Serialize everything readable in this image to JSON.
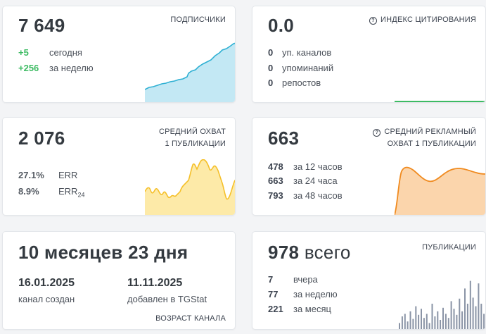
{
  "subscribers": {
    "value": "7 649",
    "caption": "ПОДПИСЧИКИ",
    "stats": [
      {
        "value": "+5",
        "label": "сегодня"
      },
      {
        "value": "+256",
        "label": "за неделю"
      }
    ]
  },
  "citation": {
    "value": "0.0",
    "caption": "ИНДЕКС ЦИТИРОВАНИЯ",
    "stats": [
      {
        "value": "0",
        "label": "уп. каналов"
      },
      {
        "value": "0",
        "label": "упоминаний"
      },
      {
        "value": "0",
        "label": "репостов"
      }
    ]
  },
  "reach": {
    "value": "2 076",
    "caption_lines": [
      "СРЕДНИЙ ОХВАТ",
      "1 ПУБЛИКАЦИИ"
    ],
    "stats": [
      {
        "value": "27.1%",
        "label": "ERR"
      },
      {
        "value": "8.9%",
        "label": "ERR",
        "sub": "24"
      }
    ]
  },
  "ad_reach": {
    "value": "663",
    "caption_lines": [
      "СРЕДНИЙ РЕКЛАМНЫЙ",
      "ОХВАТ 1 ПУБЛИКАЦИИ"
    ],
    "stats": [
      {
        "value": "478",
        "label": "за 12 часов"
      },
      {
        "value": "663",
        "label": "за 24 часа"
      },
      {
        "value": "793",
        "label": "за 48 часов"
      }
    ]
  },
  "age": {
    "value": "10 месяцев 23 дня",
    "created_date": "16.01.2025",
    "created_label": "канал создан",
    "added_date": "11.11.2025",
    "added_label": "добавлен в TGStat",
    "caption": "ВОЗРАСТ КАНАЛА"
  },
  "posts": {
    "value": "978",
    "value_suffix": "всего",
    "caption": "ПУБЛИКАЦИИ",
    "stats": [
      {
        "value": "7",
        "label": "вчера"
      },
      {
        "value": "77",
        "label": "за неделю"
      },
      {
        "value": "221",
        "label": "за месяц"
      }
    ]
  },
  "colors": {
    "subscribers_line": "#2fb0d3",
    "subscribers_fill": "#bde6f3",
    "citation_line": "#3dbb63",
    "reach_line": "#f5c02a",
    "reach_fill": "#fde9a3",
    "ad_line": "#f08a1e",
    "ad_fill": "#fbd3a8",
    "posts_bars": "#8a94a6",
    "positive": "#3dbb63"
  },
  "icons": {
    "help": "question-circle-icon"
  }
}
